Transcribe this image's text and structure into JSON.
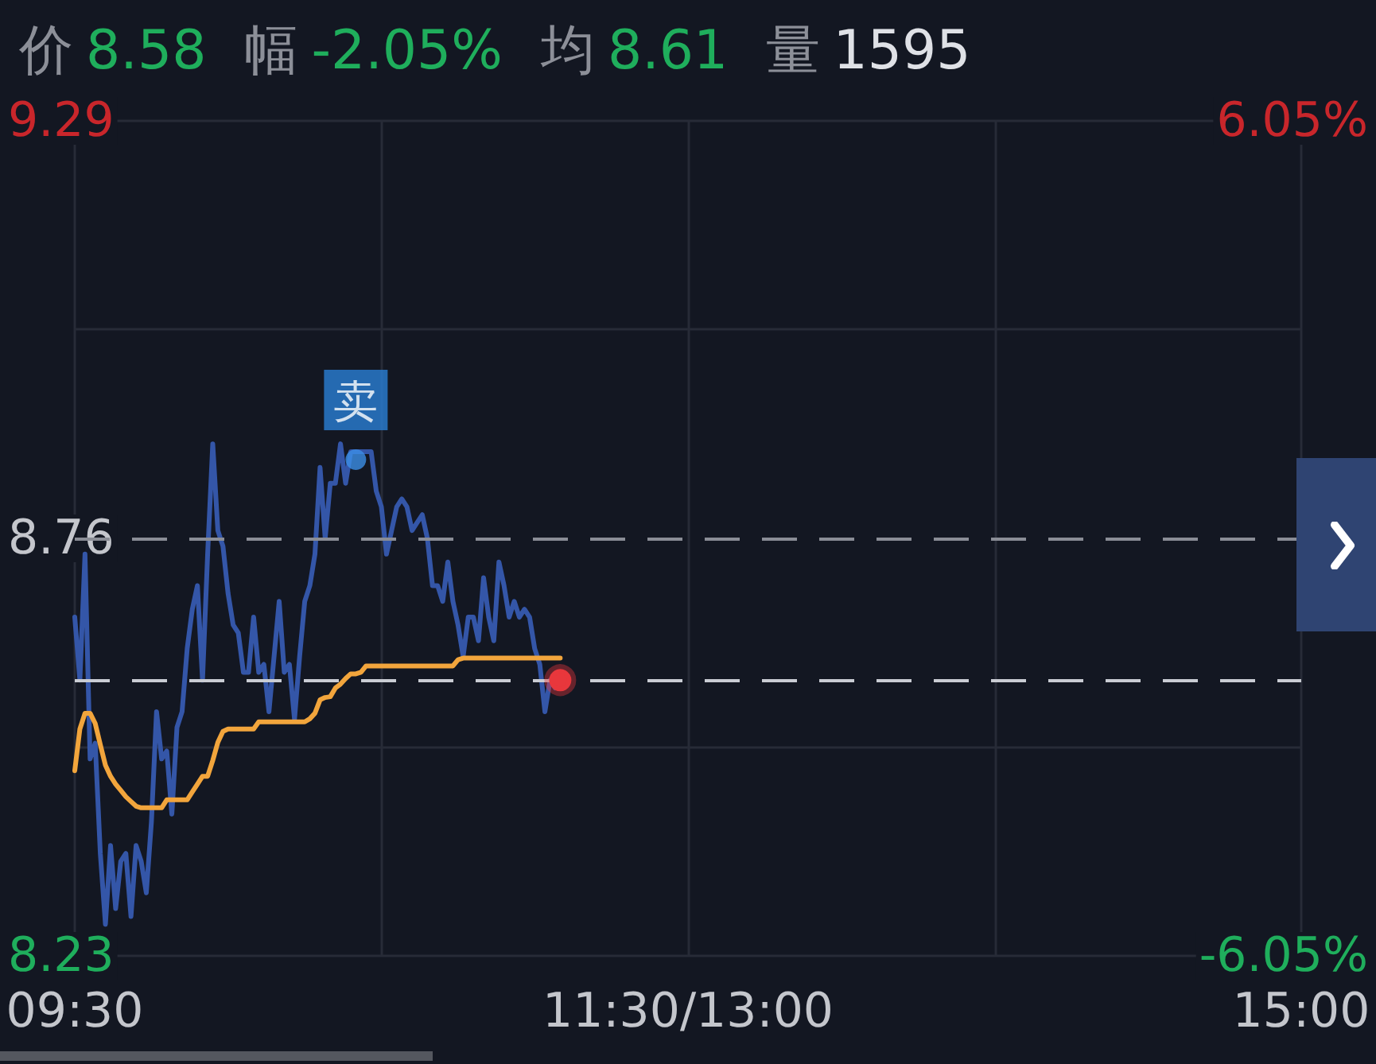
{
  "chart_data": {
    "type": "line",
    "title": "价 8.58 幅 -2.05% 均 8.61 量 1595",
    "categories": [
      "09:30",
      null,
      null,
      null,
      null,
      null,
      null,
      null,
      null,
      null,
      null,
      null,
      null,
      null,
      null,
      null,
      null,
      null,
      null,
      null,
      null,
      null,
      null,
      null,
      null,
      null,
      null,
      null,
      null,
      null,
      null,
      null,
      null,
      null,
      null,
      null,
      null,
      null,
      null,
      null,
      null,
      null,
      null,
      null,
      null,
      null,
      null,
      null,
      null,
      null,
      null,
      null,
      null,
      null,
      null,
      null,
      null,
      null,
      null,
      null,
      null,
      null,
      null,
      null,
      null,
      null,
      null,
      null,
      null,
      null,
      null,
      null,
      null,
      null,
      null,
      null,
      null,
      null,
      null,
      null,
      null,
      null,
      null,
      null,
      null,
      null,
      null,
      null,
      null,
      null,
      null,
      null,
      null,
      null,
      null,
      null,
      null,
      null,
      null,
      null,
      null,
      null,
      null,
      null,
      null,
      null,
      null,
      null,
      null,
      null,
      null,
      null,
      null,
      null,
      null,
      null,
      null,
      null,
      null,
      null,
      "11:30/13:00",
      null,
      null,
      null,
      null,
      null,
      null,
      null,
      null,
      null,
      null,
      null,
      null,
      null,
      null,
      null,
      null,
      null,
      null,
      null,
      null,
      null,
      null,
      null,
      null,
      null,
      null,
      null,
      null,
      null,
      null,
      null,
      null,
      null,
      null,
      null,
      null,
      null,
      null,
      null,
      null,
      null,
      null,
      null,
      null,
      null,
      null,
      null,
      null,
      null,
      null,
      null,
      null,
      null,
      null,
      null,
      null,
      null,
      null,
      null,
      null,
      null,
      null,
      null,
      null,
      null,
      null,
      null,
      null,
      null,
      null,
      null,
      null,
      null,
      null,
      null,
      null,
      null,
      null,
      null,
      null,
      null,
      null,
      null,
      null,
      null,
      null,
      null,
      null,
      null,
      null,
      null,
      null,
      null,
      null,
      null,
      null,
      null,
      null,
      null,
      null,
      null,
      null,
      null,
      null,
      null,
      null,
      null,
      null,
      null,
      null,
      null,
      null,
      null,
      null,
      null,
      null,
      null,
      null,
      null,
      "15:00"
    ],
    "series": [
      {
        "color": "#3456a8",
        "values": [
          8.66,
          8.58,
          8.74,
          8.48,
          8.5,
          8.36,
          8.27,
          8.37,
          8.29,
          8.35,
          8.36,
          8.28,
          8.37,
          8.35,
          8.31,
          8.4,
          8.54,
          8.48,
          8.49,
          8.41,
          8.52,
          8.54,
          8.62,
          8.67,
          8.7,
          8.58,
          8.74,
          8.88,
          8.77,
          8.75,
          8.69,
          8.65,
          8.64,
          8.59,
          8.59,
          8.66,
          8.59,
          8.6,
          8.54,
          8.61,
          8.68,
          8.59,
          8.6,
          8.53,
          8.61,
          8.68,
          8.7,
          8.74,
          8.85,
          8.76,
          8.83,
          8.83,
          8.88,
          8.83,
          8.87,
          8.87,
          8.87,
          8.87,
          8.87,
          8.82,
          8.8,
          8.74,
          8.77,
          8.8,
          8.81,
          8.8,
          8.77,
          8.78,
          8.79,
          8.76,
          8.7,
          8.7,
          8.68,
          8.73,
          8.68,
          8.65,
          8.61,
          8.66,
          8.66,
          8.63,
          8.71,
          8.66,
          8.63,
          8.73,
          8.7,
          8.66,
          8.68,
          8.66,
          8.67,
          8.66,
          8.62,
          8.6,
          8.54,
          8.58,
          8.57,
          8.58,
          null,
          null,
          null,
          null,
          null,
          null,
          null,
          null,
          null,
          null,
          null,
          null,
          null,
          null,
          null,
          null,
          null,
          null,
          null,
          null,
          null,
          null,
          null,
          null,
          null,
          null,
          null,
          null,
          null,
          null,
          null,
          null,
          null,
          null,
          null,
          null,
          null,
          null,
          null,
          null,
          null,
          null,
          null,
          null,
          null,
          null,
          null,
          null,
          null,
          null,
          null,
          null,
          null,
          null,
          null,
          null,
          null,
          null,
          null,
          null,
          null,
          null,
          null,
          null,
          null,
          null,
          null,
          null,
          null,
          null,
          null,
          null,
          null,
          null,
          null,
          null,
          null,
          null,
          null,
          null,
          null,
          null,
          null,
          null,
          null,
          null,
          null,
          null,
          null,
          null,
          null,
          null,
          null,
          null,
          null,
          null,
          null,
          null,
          null,
          null,
          null,
          null,
          null,
          null,
          null,
          null,
          null,
          null,
          null,
          null,
          null,
          null,
          null,
          null,
          null,
          null,
          null,
          null,
          null,
          null,
          null,
          null,
          null,
          null,
          null,
          null,
          null,
          null,
          null,
          null,
          null,
          null,
          null,
          null,
          null,
          null,
          null,
          null,
          null,
          null,
          null,
          null,
          null,
          null,
          null
        ]
      },
      {
        "color": "#f2a53c",
        "values": [
          8.465,
          8.518,
          8.538,
          8.538,
          8.525,
          8.498,
          8.472,
          8.458,
          8.448,
          8.44,
          8.432,
          8.426,
          8.42,
          8.418,
          8.418,
          8.418,
          8.418,
          8.418,
          8.428,
          8.428,
          8.428,
          8.428,
          8.428,
          8.438,
          8.448,
          8.458,
          8.458,
          8.478,
          8.501,
          8.515,
          8.518,
          8.518,
          8.518,
          8.518,
          8.518,
          8.518,
          8.527,
          8.527,
          8.527,
          8.527,
          8.527,
          8.527,
          8.527,
          8.527,
          8.527,
          8.527,
          8.531,
          8.538,
          8.555,
          8.558,
          8.559,
          8.57,
          8.575,
          8.582,
          8.588,
          8.588,
          8.59,
          8.598,
          8.598,
          8.598,
          8.598,
          8.598,
          8.598,
          8.598,
          8.598,
          8.598,
          8.598,
          8.598,
          8.598,
          8.598,
          8.598,
          8.598,
          8.598,
          8.598,
          8.598,
          8.606,
          8.608,
          8.608,
          8.608,
          8.608,
          8.608,
          8.608,
          8.608,
          8.608,
          8.608,
          8.608,
          8.608,
          8.608,
          8.608,
          8.608,
          8.608,
          8.608,
          8.608,
          8.608,
          8.608,
          8.608,
          null,
          null,
          null,
          null,
          null,
          null,
          null,
          null,
          null,
          null,
          null,
          null,
          null,
          null,
          null,
          null,
          null,
          null,
          null,
          null,
          null,
          null,
          null,
          null,
          null,
          null,
          null,
          null,
          null,
          null,
          null,
          null,
          null,
          null,
          null,
          null,
          null,
          null,
          null,
          null,
          null,
          null,
          null,
          null,
          null,
          null,
          null,
          null,
          null,
          null,
          null,
          null,
          null,
          null,
          null,
          null,
          null,
          null,
          null,
          null,
          null,
          null,
          null,
          null,
          null,
          null,
          null,
          null,
          null,
          null,
          null,
          null,
          null,
          null,
          null,
          null,
          null,
          null,
          null,
          null,
          null,
          null,
          null,
          null,
          null,
          null,
          null,
          null,
          null,
          null,
          null,
          null,
          null,
          null,
          null,
          null,
          null,
          null,
          null,
          null,
          null,
          null,
          null,
          null,
          null,
          null,
          null,
          null,
          null,
          null,
          null,
          null,
          null,
          null,
          null,
          null,
          null,
          null,
          null,
          null,
          null,
          null,
          null,
          null,
          null,
          null,
          null,
          null,
          null,
          null,
          null,
          null,
          null,
          null,
          null,
          null,
          null,
          null,
          null,
          null,
          null,
          null,
          null,
          null,
          null
        ]
      },
      {
        "type": "scatter",
        "color": "#3c8ee6",
        "marker": "circle",
        "values": [
          null,
          null,
          null,
          null,
          null,
          null,
          null,
          null,
          null,
          null,
          null,
          null,
          null,
          null,
          null,
          null,
          null,
          null,
          null,
          null,
          null,
          null,
          null,
          null,
          null,
          null,
          null,
          null,
          null,
          null,
          null,
          null,
          null,
          null,
          null,
          null,
          null,
          null,
          null,
          null,
          null,
          null,
          null,
          null,
          null,
          null,
          null,
          null,
          null,
          null,
          null,
          null,
          null,
          null,
          null,
          8.86,
          null,
          null,
          null,
          null,
          null,
          null,
          null,
          null,
          null,
          null,
          null,
          null,
          null,
          null,
          null,
          null,
          null,
          null,
          null,
          null,
          null,
          null,
          null,
          null,
          null,
          null,
          null,
          null,
          null,
          null,
          null,
          null,
          null,
          null,
          null,
          null,
          null,
          null,
          null,
          null,
          null,
          null,
          null,
          null,
          null,
          null,
          null,
          null,
          null,
          null,
          null,
          null,
          null,
          null,
          null,
          null,
          null,
          null,
          null,
          null,
          null,
          null,
          null,
          null,
          null,
          null,
          null,
          null,
          null,
          null,
          null,
          null,
          null,
          null,
          null,
          null,
          null,
          null,
          null,
          null,
          null,
          null,
          null,
          null,
          null,
          null,
          null,
          null,
          null,
          null,
          null,
          null,
          null,
          null,
          null,
          null,
          null,
          null,
          null,
          null,
          null,
          null,
          null,
          null,
          null,
          null,
          null,
          null,
          null,
          null,
          null,
          null,
          null,
          null,
          null,
          null,
          null,
          null,
          null,
          null,
          null,
          null,
          null,
          null,
          null,
          null,
          null,
          null,
          null,
          null,
          null,
          null,
          null,
          null,
          null,
          null,
          null,
          null,
          null,
          null,
          null,
          null,
          null,
          null,
          null,
          null,
          null,
          null,
          null,
          null,
          null,
          null,
          null,
          null,
          null,
          null,
          null,
          null,
          null,
          null,
          null,
          null,
          null,
          null,
          null,
          null,
          null,
          null,
          null,
          null,
          null,
          null,
          null,
          null,
          null,
          null,
          null,
          null,
          null,
          null,
          null,
          null,
          null,
          null,
          null
        ],
        "value_labels": [
          null,
          null,
          null,
          null,
          null,
          null,
          null,
          null,
          null,
          null,
          null,
          null,
          null,
          null,
          null,
          null,
          null,
          null,
          null,
          null,
          null,
          null,
          null,
          null,
          null,
          null,
          null,
          null,
          null,
          null,
          null,
          null,
          null,
          null,
          null,
          null,
          null,
          null,
          null,
          null,
          null,
          null,
          null,
          null,
          null,
          null,
          null,
          null,
          null,
          null,
          null,
          null,
          null,
          null,
          null,
          "卖",
          null,
          null,
          null,
          null,
          null,
          null,
          null,
          null,
          null,
          null,
          null,
          null,
          null,
          null,
          null,
          null,
          null,
          null,
          null,
          null,
          null,
          null,
          null,
          null,
          null,
          null,
          null,
          null,
          null,
          null,
          null,
          null,
          null,
          null,
          null,
          null,
          null,
          null,
          null,
          null,
          null,
          null,
          null,
          null,
          null,
          null,
          null,
          null,
          null,
          null,
          null,
          null,
          null,
          null,
          null,
          null,
          null,
          null,
          null,
          null,
          null,
          null,
          null,
          null,
          null,
          null,
          null,
          null,
          null,
          null,
          null,
          null,
          null,
          null,
          null,
          null,
          null,
          null,
          null,
          null,
          null,
          null,
          null,
          null,
          null,
          null,
          null,
          null,
          null,
          null,
          null,
          null,
          null,
          null,
          null,
          null,
          null,
          null,
          null,
          null,
          null,
          null,
          null,
          null,
          null,
          null,
          null,
          null,
          null,
          null,
          null,
          null,
          null,
          null,
          null,
          null,
          null,
          null,
          null,
          null,
          null,
          null,
          null,
          null,
          null,
          null,
          null,
          null,
          null,
          null,
          null,
          null,
          null,
          null,
          null,
          null,
          null,
          null,
          null,
          null,
          null,
          null,
          null,
          null,
          null,
          null,
          null,
          null,
          null,
          null,
          null,
          null,
          null,
          null,
          null,
          null,
          null,
          null,
          null,
          null,
          null,
          null,
          null,
          null,
          null,
          null,
          null,
          null,
          null,
          null,
          null,
          null,
          null,
          null,
          null,
          null,
          null,
          null,
          null,
          null,
          null,
          null,
          null,
          null,
          null
        ]
      }
    ],
    "ylim": [
      8.23,
      9.29
    ],
    "yticks": [
      8.23,
      {
        "value": 8.495,
        "label": null
      },
      8.76,
      {
        "value": 9.025,
        "label": null
      },
      9.29
    ],
    "y2lim": [
      -6.05,
      6.05
    ],
    "y2ticks": [
      {
        "value": -6.05,
        "label": "-6.05%"
      },
      {
        "value": 6.05,
        "label": "6.05%"
      }
    ],
    "ref_lines": [
      {
        "axis": "y",
        "value": 8.76,
        "color": "#8a8d96",
        "line_style": "dashed"
      },
      {
        "axis": "y",
        "value": 8.58,
        "color": "#c9ccd3",
        "line_style": "dashed"
      }
    ],
    "grid": true
  }
}
